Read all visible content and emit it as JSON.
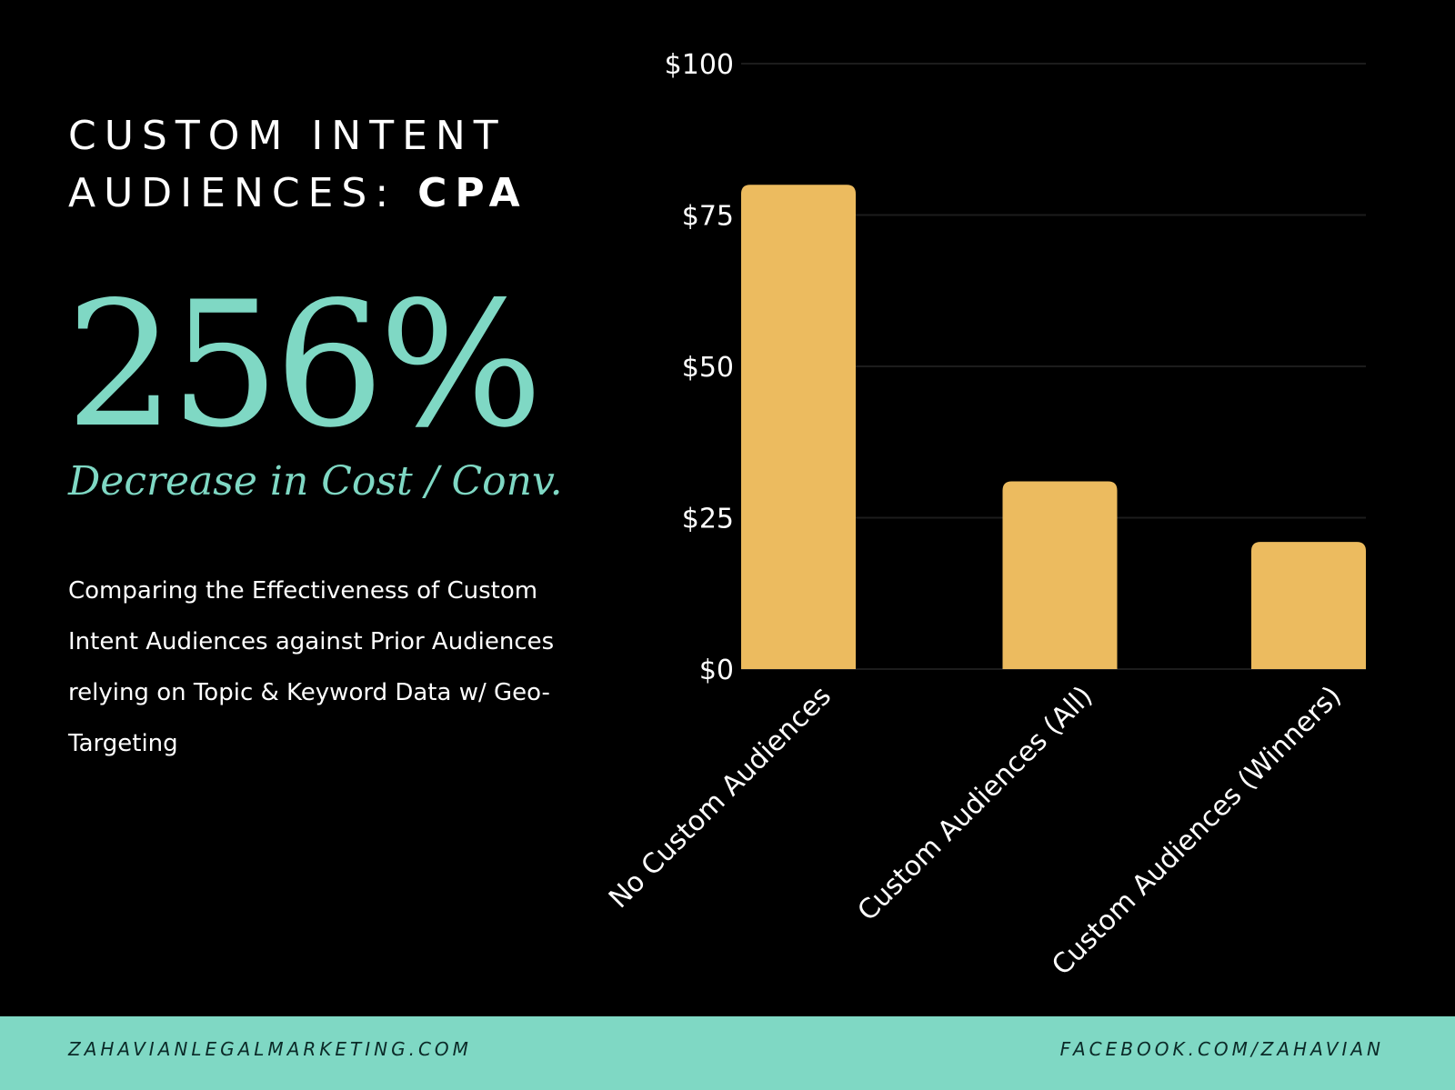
{
  "header": {
    "title_line1": "CUSTOM INTENT",
    "title_line2_prefix": "AUDIENCES: ",
    "title_line2_bold": "CPA"
  },
  "stat": {
    "value": "256%",
    "caption": "Decrease in Cost / Conv."
  },
  "description": "Comparing the Effectiveness of Custom Intent Audiences against Prior Audiences relying on Topic & Keyword Data w/ Geo-Targeting",
  "footer": {
    "left_link": "ZAHAVIANLEGALMARKETING.COM",
    "right_link": "FACEBOOK.COM/ZAHAVIAN"
  },
  "colors": {
    "background": "#000000",
    "accent": "#7fd8c4",
    "bar": "#ecbb5f",
    "text": "#ffffff"
  },
  "chart_data": {
    "type": "bar",
    "categories": [
      "No Custom Audiences",
      "Custom Audiences (All)",
      "Custom Audiences (Winners)"
    ],
    "values": [
      80,
      31,
      21
    ],
    "y_ticks": [
      "$0",
      "$25",
      "$50",
      "$75",
      "$100"
    ],
    "y_tick_values": [
      0,
      25,
      50,
      75,
      100
    ],
    "ylim": [
      0,
      100
    ],
    "title": "",
    "xlabel": "",
    "ylabel": "",
    "grid": true,
    "legend": "none"
  }
}
